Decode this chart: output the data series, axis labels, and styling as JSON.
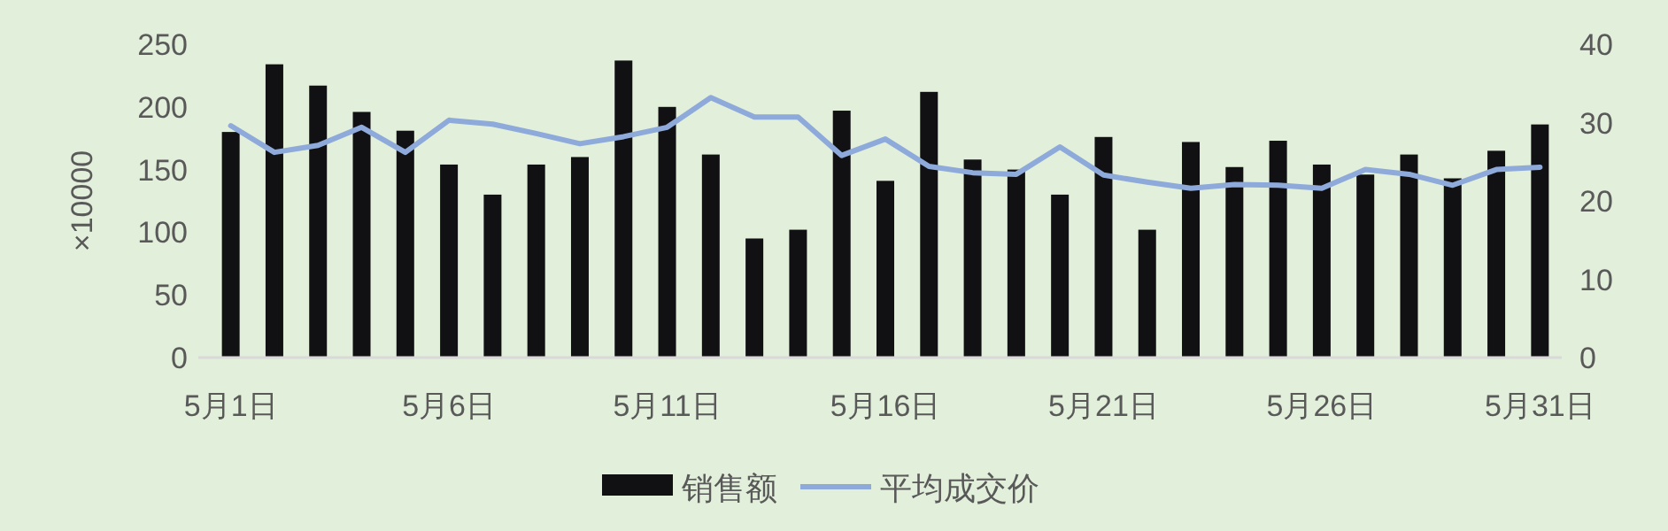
{
  "chart_data": {
    "type": "bar",
    "ylabel": "×10000",
    "categories": [
      "5月1日",
      null,
      null,
      null,
      null,
      "5月6日",
      null,
      null,
      null,
      null,
      "5月11日",
      null,
      null,
      null,
      null,
      "5月16日",
      null,
      null,
      null,
      null,
      "5月21日",
      null,
      null,
      null,
      null,
      "5月26日",
      null,
      null,
      null,
      null,
      "5月31日"
    ],
    "series": [
      {
        "name": "销售额",
        "color": "#111013",
        "values": [
          180,
          234,
          217,
          196,
          181,
          154,
          130,
          154,
          160,
          237,
          200,
          162,
          95,
          102,
          197,
          141,
          212,
          158,
          150,
          130,
          176,
          102,
          172,
          152,
          173,
          154,
          146,
          162,
          143,
          165,
          186
        ]
      },
      {
        "name": "平均成交价",
        "type": "line",
        "axis": "y2",
        "color": "#8eaadb",
        "values": [
          29.6,
          26.2,
          27.1,
          29.4,
          26.2,
          30.3,
          29.8,
          28.6,
          27.3,
          28.2,
          29.4,
          33.2,
          30.7,
          30.7,
          25.8,
          27.9,
          24.4,
          23.6,
          23.4,
          26.9,
          23.3,
          22.4,
          21.6,
          22.1,
          22.0,
          21.6,
          24.0,
          23.4,
          22.0,
          24.0,
          24.3
        ]
      }
    ],
    "ylim": [
      0,
      250
    ],
    "yticks": [
      0,
      50,
      100,
      150,
      200,
      250
    ],
    "y2lim": [
      0,
      40
    ],
    "y2ticks": [
      0,
      10,
      20,
      30,
      40
    ],
    "grid": false,
    "legend": "bottom"
  }
}
